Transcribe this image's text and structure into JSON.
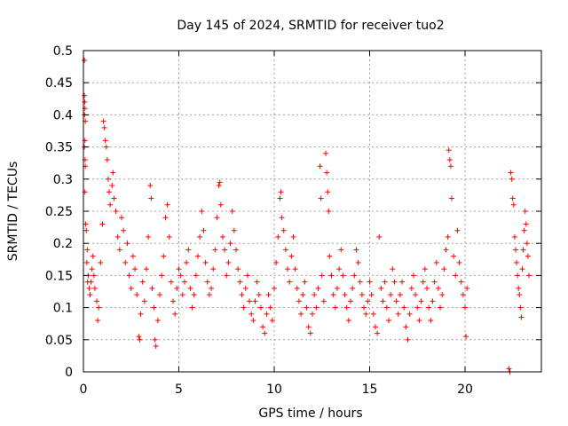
{
  "chart_data": {
    "type": "scatter",
    "title": "Day 145 of 2024, SRMTID for receiver tuo2",
    "xlabel": "GPS time / hours",
    "ylabel": "SRMTID / TECUs",
    "xlim": [
      0,
      24
    ],
    "ylim": [
      0,
      0.5
    ],
    "x_ticks": [
      0,
      5,
      10,
      15,
      20
    ],
    "x_tick_labels": [
      "0",
      "5",
      "10",
      "15",
      "20"
    ],
    "y_ticks": [
      0,
      0.05,
      0.1,
      0.15,
      0.2,
      0.25,
      0.3,
      0.35,
      0.4,
      0.45,
      0.5
    ],
    "y_tick_labels": [
      "0",
      "0.05",
      "0.1",
      "0.15",
      "0.2",
      "0.25",
      "0.3",
      "0.35",
      "0.4",
      "0.45",
      "0.5"
    ],
    "grid": true,
    "marker": "plus",
    "series": [
      {
        "name": "SRMTID",
        "color": "#ff0000",
        "points": [
          [
            0.05,
            0.485
          ],
          [
            0.05,
            0.43
          ],
          [
            0.07,
            0.42
          ],
          [
            0.08,
            0.41
          ],
          [
            0.06,
            0.4
          ],
          [
            0.1,
            0.39
          ],
          [
            0.08,
            0.36
          ],
          [
            0.05,
            0.35
          ],
          [
            0.09,
            0.33
          ],
          [
            0.1,
            0.32
          ],
          [
            0.08,
            0.28
          ],
          [
            0.12,
            0.23
          ],
          [
            0.15,
            0.22
          ],
          [
            0.2,
            0.19
          ],
          [
            0.18,
            0.17
          ],
          [
            0.25,
            0.15
          ],
          [
            0.22,
            0.14
          ],
          [
            0.3,
            0.13
          ],
          [
            0.35,
            0.12
          ],
          [
            0.4,
            0.14
          ],
          [
            0.45,
            0.16
          ],
          [
            0.5,
            0.18
          ],
          [
            0.55,
            0.15
          ],
          [
            0.6,
            0.13
          ],
          [
            0.7,
            0.11
          ],
          [
            0.75,
            0.08
          ],
          [
            0.8,
            0.1
          ],
          [
            0.9,
            0.17
          ],
          [
            1.0,
            0.23
          ],
          [
            1.05,
            0.39
          ],
          [
            1.1,
            0.38
          ],
          [
            1.15,
            0.36
          ],
          [
            1.2,
            0.35
          ],
          [
            1.25,
            0.33
          ],
          [
            1.3,
            0.3
          ],
          [
            1.35,
            0.28
          ],
          [
            1.4,
            0.26
          ],
          [
            1.5,
            0.29
          ],
          [
            1.55,
            0.31
          ],
          [
            1.6,
            0.27
          ],
          [
            1.7,
            0.25
          ],
          [
            1.8,
            0.21
          ],
          [
            1.9,
            0.19
          ],
          [
            2.0,
            0.24
          ],
          [
            2.1,
            0.22
          ],
          [
            2.2,
            0.17
          ],
          [
            2.3,
            0.2
          ],
          [
            2.4,
            0.15
          ],
          [
            2.5,
            0.13
          ],
          [
            2.6,
            0.18
          ],
          [
            2.7,
            0.16
          ],
          [
            2.8,
            0.12
          ],
          [
            2.9,
            0.055
          ],
          [
            2.95,
            0.05
          ],
          [
            3.0,
            0.09
          ],
          [
            3.1,
            0.14
          ],
          [
            3.2,
            0.11
          ],
          [
            3.3,
            0.16
          ],
          [
            3.4,
            0.21
          ],
          [
            3.5,
            0.29
          ],
          [
            3.55,
            0.27
          ],
          [
            3.6,
            0.13
          ],
          [
            3.7,
            0.1
          ],
          [
            3.75,
            0.05
          ],
          [
            3.8,
            0.04
          ],
          [
            3.9,
            0.08
          ],
          [
            4.0,
            0.12
          ],
          [
            4.1,
            0.15
          ],
          [
            4.2,
            0.18
          ],
          [
            4.3,
            0.24
          ],
          [
            4.4,
            0.26
          ],
          [
            4.5,
            0.21
          ],
          [
            4.6,
            0.14
          ],
          [
            4.7,
            0.11
          ],
          [
            4.8,
            0.09
          ],
          [
            4.9,
            0.13
          ],
          [
            5.0,
            0.16
          ],
          [
            5.1,
            0.15
          ],
          [
            5.2,
            0.12
          ],
          [
            5.3,
            0.14
          ],
          [
            5.4,
            0.17
          ],
          [
            5.5,
            0.19
          ],
          [
            5.6,
            0.13
          ],
          [
            5.7,
            0.1
          ],
          [
            5.8,
            0.12
          ],
          [
            5.9,
            0.15
          ],
          [
            6.0,
            0.18
          ],
          [
            6.1,
            0.21
          ],
          [
            6.2,
            0.25
          ],
          [
            6.3,
            0.22
          ],
          [
            6.4,
            0.17
          ],
          [
            6.5,
            0.14
          ],
          [
            6.6,
            0.12
          ],
          [
            6.7,
            0.13
          ],
          [
            6.8,
            0.16
          ],
          [
            6.9,
            0.19
          ],
          [
            7.0,
            0.24
          ],
          [
            7.1,
            0.29
          ],
          [
            7.15,
            0.295
          ],
          [
            7.2,
            0.26
          ],
          [
            7.3,
            0.21
          ],
          [
            7.4,
            0.19
          ],
          [
            7.5,
            0.15
          ],
          [
            7.6,
            0.17
          ],
          [
            7.7,
            0.2
          ],
          [
            7.8,
            0.25
          ],
          [
            7.9,
            0.22
          ],
          [
            8.0,
            0.19
          ],
          [
            8.1,
            0.16
          ],
          [
            8.2,
            0.14
          ],
          [
            8.3,
            0.12
          ],
          [
            8.4,
            0.1
          ],
          [
            8.5,
            0.13
          ],
          [
            8.6,
            0.15
          ],
          [
            8.7,
            0.11
          ],
          [
            8.8,
            0.09
          ],
          [
            8.9,
            0.08
          ],
          [
            9.0,
            0.11
          ],
          [
            9.1,
            0.14
          ],
          [
            9.2,
            0.12
          ],
          [
            9.3,
            0.1
          ],
          [
            9.4,
            0.07
          ],
          [
            9.5,
            0.06
          ],
          [
            9.6,
            0.09
          ],
          [
            9.7,
            0.12
          ],
          [
            9.8,
            0.1
          ],
          [
            9.9,
            0.08
          ],
          [
            10.0,
            0.13
          ],
          [
            10.1,
            0.17
          ],
          [
            10.2,
            0.21
          ],
          [
            10.3,
            0.27
          ],
          [
            10.35,
            0.28
          ],
          [
            10.4,
            0.24
          ],
          [
            10.5,
            0.22
          ],
          [
            10.6,
            0.19
          ],
          [
            10.7,
            0.16
          ],
          [
            10.8,
            0.14
          ],
          [
            10.9,
            0.18
          ],
          [
            11.0,
            0.21
          ],
          [
            11.1,
            0.16
          ],
          [
            11.2,
            0.13
          ],
          [
            11.3,
            0.11
          ],
          [
            11.4,
            0.09
          ],
          [
            11.5,
            0.12
          ],
          [
            11.6,
            0.14
          ],
          [
            11.7,
            0.1
          ],
          [
            11.8,
            0.07
          ],
          [
            11.9,
            0.06
          ],
          [
            12.0,
            0.09
          ],
          [
            12.1,
            0.12
          ],
          [
            12.2,
            0.1
          ],
          [
            12.3,
            0.13
          ],
          [
            12.4,
            0.32
          ],
          [
            12.45,
            0.27
          ],
          [
            12.5,
            0.15
          ],
          [
            12.6,
            0.11
          ],
          [
            12.7,
            0.34
          ],
          [
            12.75,
            0.31
          ],
          [
            12.8,
            0.28
          ],
          [
            12.85,
            0.25
          ],
          [
            12.9,
            0.18
          ],
          [
            13.0,
            0.15
          ],
          [
            13.1,
            0.12
          ],
          [
            13.2,
            0.1
          ],
          [
            13.3,
            0.13
          ],
          [
            13.4,
            0.16
          ],
          [
            13.5,
            0.19
          ],
          [
            13.6,
            0.15
          ],
          [
            13.7,
            0.12
          ],
          [
            13.8,
            0.1
          ],
          [
            13.9,
            0.08
          ],
          [
            14.0,
            0.11
          ],
          [
            14.1,
            0.13
          ],
          [
            14.2,
            0.15
          ],
          [
            14.3,
            0.19
          ],
          [
            14.4,
            0.17
          ],
          [
            14.5,
            0.14
          ],
          [
            14.6,
            0.12
          ],
          [
            14.7,
            0.1
          ],
          [
            14.8,
            0.09
          ],
          [
            14.9,
            0.11
          ],
          [
            15.0,
            0.14
          ],
          [
            15.1,
            0.12
          ],
          [
            15.2,
            0.09
          ],
          [
            15.3,
            0.07
          ],
          [
            15.4,
            0.06
          ],
          [
            15.5,
            0.21
          ],
          [
            15.6,
            0.13
          ],
          [
            15.7,
            0.11
          ],
          [
            15.8,
            0.14
          ],
          [
            15.9,
            0.1
          ],
          [
            16.0,
            0.08
          ],
          [
            16.1,
            0.12
          ],
          [
            16.2,
            0.16
          ],
          [
            16.3,
            0.14
          ],
          [
            16.4,
            0.11
          ],
          [
            16.5,
            0.09
          ],
          [
            16.6,
            0.12
          ],
          [
            16.7,
            0.14
          ],
          [
            16.8,
            0.1
          ],
          [
            16.9,
            0.07
          ],
          [
            17.0,
            0.05
          ],
          [
            17.1,
            0.09
          ],
          [
            17.2,
            0.13
          ],
          [
            17.3,
            0.15
          ],
          [
            17.4,
            0.12
          ],
          [
            17.5,
            0.1
          ],
          [
            17.6,
            0.08
          ],
          [
            17.7,
            0.11
          ],
          [
            17.8,
            0.14
          ],
          [
            17.9,
            0.16
          ],
          [
            18.0,
            0.13
          ],
          [
            18.1,
            0.1
          ],
          [
            18.2,
            0.08
          ],
          [
            18.3,
            0.11
          ],
          [
            18.4,
            0.14
          ],
          [
            18.5,
            0.17
          ],
          [
            18.6,
            0.13
          ],
          [
            18.7,
            0.1
          ],
          [
            18.8,
            0.12
          ],
          [
            18.9,
            0.16
          ],
          [
            19.0,
            0.19
          ],
          [
            19.1,
            0.21
          ],
          [
            19.15,
            0.345
          ],
          [
            19.2,
            0.33
          ],
          [
            19.25,
            0.32
          ],
          [
            19.3,
            0.27
          ],
          [
            19.4,
            0.18
          ],
          [
            19.5,
            0.15
          ],
          [
            19.6,
            0.22
          ],
          [
            19.7,
            0.17
          ],
          [
            19.8,
            0.14
          ],
          [
            19.9,
            0.12
          ],
          [
            20.0,
            0.1
          ],
          [
            20.05,
            0.055
          ],
          [
            20.1,
            0.13
          ],
          [
            22.3,
            0.005
          ],
          [
            22.35,
            0.0
          ],
          [
            22.4,
            0.31
          ],
          [
            22.45,
            0.3
          ],
          [
            22.5,
            0.27
          ],
          [
            22.55,
            0.26
          ],
          [
            22.6,
            0.21
          ],
          [
            22.65,
            0.19
          ],
          [
            22.7,
            0.17
          ],
          [
            22.75,
            0.15
          ],
          [
            22.8,
            0.13
          ],
          [
            22.85,
            0.12
          ],
          [
            22.9,
            0.1
          ],
          [
            22.95,
            0.085
          ],
          [
            23.0,
            0.16
          ],
          [
            23.05,
            0.19
          ],
          [
            23.1,
            0.22
          ],
          [
            23.15,
            0.25
          ],
          [
            23.2,
            0.23
          ],
          [
            23.25,
            0.2
          ],
          [
            23.3,
            0.18
          ],
          [
            23.35,
            0.15
          ]
        ]
      }
    ]
  }
}
